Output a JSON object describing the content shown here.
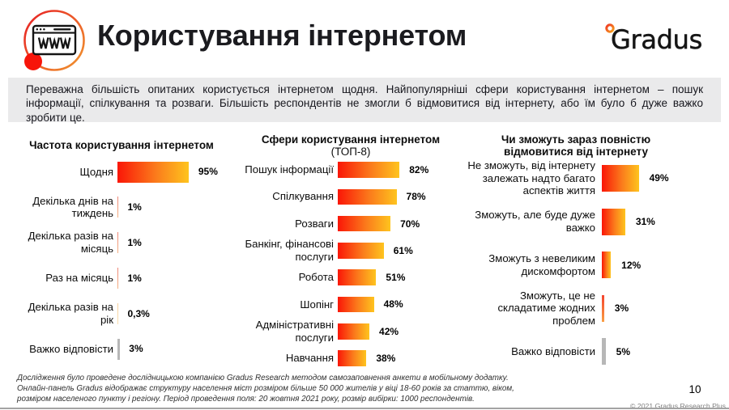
{
  "header": {
    "title": "Користування інтернетом",
    "logo_text": "Gradus",
    "icon_label": "WWW"
  },
  "summary": "Переважна більшість опитаних користується інтернетом щодня. Найпопулярніші сфери користування інтернетом – пошук інформації, спілкування та розваги. Більшість респондентів не змогли б відмовитися від інтернету, або їм було б дуже важко зробити це.",
  "chart_data": [
    {
      "type": "bar",
      "orientation": "horizontal",
      "title": "Частота користування інтернетом",
      "subtitle": "",
      "categories": [
        "Щодня",
        "Декілька днів на тиждень",
        "Декілька разів на місяць",
        "Раз на місяць",
        "Декілька разів на рік",
        "Важко відповісти"
      ],
      "values": [
        95,
        1,
        1,
        1,
        0.3,
        3
      ],
      "value_labels": [
        "95%",
        "1%",
        "1%",
        "1%",
        "0,3%",
        "3%"
      ],
      "bar_styles": [
        "gradient",
        "sliver",
        "sliver",
        "sliver",
        "sliver-pale",
        "gray"
      ],
      "xlim": [
        0,
        100
      ],
      "unit": "%",
      "grid": false,
      "legend": false
    },
    {
      "type": "bar",
      "orientation": "horizontal",
      "title": "Сфери користування інтернетом",
      "subtitle": "(ТОП-8)",
      "categories": [
        "Пошук інформації",
        "Спілкування",
        "Розваги",
        "Банкінг, фінансові послуги",
        "Робота",
        "Шопінг",
        "Адміністративні послуги",
        "Навчання"
      ],
      "values": [
        82,
        78,
        70,
        61,
        51,
        48,
        42,
        38
      ],
      "value_labels": [
        "82%",
        "78%",
        "70%",
        "61%",
        "51%",
        "48%",
        "42%",
        "38%"
      ],
      "bar_styles": [
        "gradient",
        "gradient",
        "gradient",
        "gradient",
        "gradient",
        "gradient",
        "gradient",
        "gradient"
      ],
      "xlim": [
        0,
        100
      ],
      "unit": "%",
      "grid": false,
      "legend": false
    },
    {
      "type": "bar",
      "orientation": "horizontal",
      "title": "Чи зможуть зараз повністю відмовитися від інтернету",
      "subtitle": "",
      "categories": [
        "Не зможуть, від інтернету залежать надто багато аспектів життя",
        "Зможуть, але буде дуже важко",
        "Зможуть з невеликим дискомфортом",
        "Зможуть, це не складатиме жодних проблем",
        "Важко відповісти"
      ],
      "values": [
        49,
        31,
        12,
        3,
        5
      ],
      "value_labels": [
        "49%",
        "31%",
        "12%",
        "3%",
        "5%"
      ],
      "bar_styles": [
        "gradient",
        "gradient",
        "gradient",
        "sliver-strong",
        "gray"
      ],
      "xlim": [
        0,
        100
      ],
      "unit": "%",
      "grid": false,
      "legend": false
    }
  ],
  "footer": {
    "lines": [
      "Дослідження було проведене дослідницькою компанією Gradus Research методом самозаповнення анкети в мобільному додатку.",
      "Онлайн-панель Gradus відображає структуру населення міст розміром більше 50 000 жителів у віці 18-60 років за статтю, віком,",
      "розміром населеного пункту і регіону. Період проведення поля: 20 жовтня 2021 року, розмір вибірки: 1000 респондентів."
    ],
    "page_number": "10",
    "copyright": "© 2021 Gradus Research Plus"
  },
  "colors": {
    "bar_gradient_start": "#fa1607",
    "bar_gradient_mid": "#fb7d1c",
    "bar_gradient_end": "#fec41e",
    "gray_bar": "#b7b7b7",
    "band_background": "#eaeaeb",
    "accent_red": "#f20d02",
    "accent_orange": "#f08a2c"
  }
}
